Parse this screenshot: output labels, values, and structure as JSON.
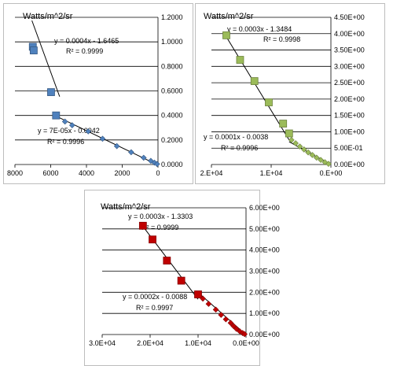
{
  "chart_data": [
    {
      "type": "scatter",
      "ylabel": "Watts/m^2/sr",
      "xlim": [
        0,
        8000
      ],
      "x_reversed": true,
      "ylim": [
        0,
        1.2
      ],
      "y_axis_side": "right",
      "xticks": [
        8000,
        6000,
        4000,
        2000,
        0
      ],
      "xtick_labels": [
        "8000",
        "6000",
        "4000",
        "2000",
        "0"
      ],
      "yticks": [
        0,
        0.2,
        0.4,
        0.6,
        0.8,
        1.0,
        1.2
      ],
      "ytick_labels": [
        "0.0000",
        "0.2000",
        "0.4000",
        "0.6000",
        "0.8000",
        "1.0000",
        "1.2000"
      ],
      "grid": "horizontal",
      "marker": "square",
      "color": "#4f81bd",
      "series": [
        {
          "marker_size": "large",
          "x": [
            7000,
            6950,
            5980,
            5700
          ],
          "y": [
            0.96,
            0.93,
            0.59,
            0.4
          ]
        },
        {
          "marker_size": "small",
          "x": [
            5200,
            4800,
            3900,
            3100,
            2300,
            1500,
            800,
            400,
            200,
            50
          ],
          "y": [
            0.35,
            0.32,
            0.27,
            0.21,
            0.15,
            0.1,
            0.055,
            0.03,
            0.015,
            0.004
          ]
        }
      ],
      "trendlines": [
        {
          "equation": "y = 0.0004x - 1.6465",
          "r2": "R² = 0.9999",
          "x_range": [
            5500,
            7050
          ]
        },
        {
          "equation": "y = 7E-05x - 0.0042",
          "r2": "R² = 0.9996",
          "x_range": [
            0,
            5500
          ]
        }
      ]
    },
    {
      "type": "scatter",
      "ylabel": "Watts/m^2/sr",
      "xlim": [
        0,
        20000
      ],
      "x_reversed": true,
      "ylim": [
        0,
        4.5
      ],
      "y_axis_side": "right",
      "xticks": [
        20000,
        10000,
        0
      ],
      "xtick_labels": [
        "2.E+04",
        "1.E+04",
        "0.E+00"
      ],
      "yticks": [
        0,
        0.5,
        1.0,
        1.5,
        2.0,
        2.5,
        3.0,
        3.5,
        4.0,
        4.5
      ],
      "ytick_labels": [
        "0.00E+00",
        "5.00E-01",
        "1.00E+00",
        "1.50E+00",
        "2.00E+00",
        "2.50E+00",
        "3.00E+00",
        "3.50E+00",
        "4.00E+00",
        "4.50E+00"
      ],
      "grid": "horizontal",
      "marker": "square",
      "color": "#9bbb59",
      "series": [
        {
          "marker_size": "large",
          "x": [
            17500,
            15200,
            12800,
            10400,
            8000,
            7000
          ],
          "y": [
            3.95,
            3.2,
            2.55,
            1.9,
            1.25,
            0.95
          ]
        },
        {
          "marker_size": "small",
          "x": [
            6600,
            5900,
            5200,
            4500,
            3800,
            3100,
            2400,
            1700,
            1000,
            400
          ],
          "y": [
            0.75,
            0.65,
            0.55,
            0.46,
            0.37,
            0.29,
            0.21,
            0.14,
            0.07,
            0.02
          ]
        }
      ],
      "trendlines": [
        {
          "equation": "y = 0.0003x - 1.3484",
          "r2": "R² = 0.9998",
          "x_range": [
            7000,
            18000
          ]
        },
        {
          "equation": "y = 0.0001x - 0.0038",
          "r2": "R² = 0.9996",
          "x_range": [
            0,
            7000
          ]
        }
      ]
    },
    {
      "type": "scatter",
      "ylabel": "Watts/m^2/sr",
      "xlim": [
        0,
        30000
      ],
      "x_reversed": true,
      "ylim": [
        0,
        6
      ],
      "y_axis_side": "right",
      "xticks": [
        30000,
        20000,
        10000,
        0
      ],
      "xtick_labels": [
        "3.0E+04",
        "2.0E+04",
        "1.0E+04",
        "0.0E+00"
      ],
      "yticks": [
        0,
        1,
        2,
        3,
        4,
        5,
        6
      ],
      "ytick_labels": [
        "0.00E+00",
        "1.00E+00",
        "2.00E+00",
        "3.00E+00",
        "4.00E+00",
        "5.00E+00",
        "6.00E+00"
      ],
      "grid": "horizontal",
      "marker": "square",
      "color": "#c00000",
      "series": [
        {
          "marker_size": "large",
          "x": [
            21500,
            19500,
            16500,
            13500,
            10000
          ],
          "y": [
            5.15,
            4.5,
            3.5,
            2.55,
            1.9
          ]
        },
        {
          "marker_size": "small",
          "x": [
            9000,
            7800,
            6300,
            5200,
            4200,
            3200,
            2600,
            2000,
            1300,
            700,
            300
          ],
          "y": [
            1.7,
            1.45,
            1.18,
            0.93,
            0.72,
            0.55,
            0.4,
            0.27,
            0.15,
            0.07,
            0.02
          ]
        }
      ],
      "trendlines": [
        {
          "equation": "y = 0.0003x - 1.3303",
          "r2": "R² = 0.9999",
          "x_range": [
            10000,
            21800
          ]
        },
        {
          "equation": "y = 0.0002x - 0.0088",
          "r2": "R² = 0.9997",
          "x_range": [
            0,
            10000
          ]
        }
      ]
    }
  ]
}
